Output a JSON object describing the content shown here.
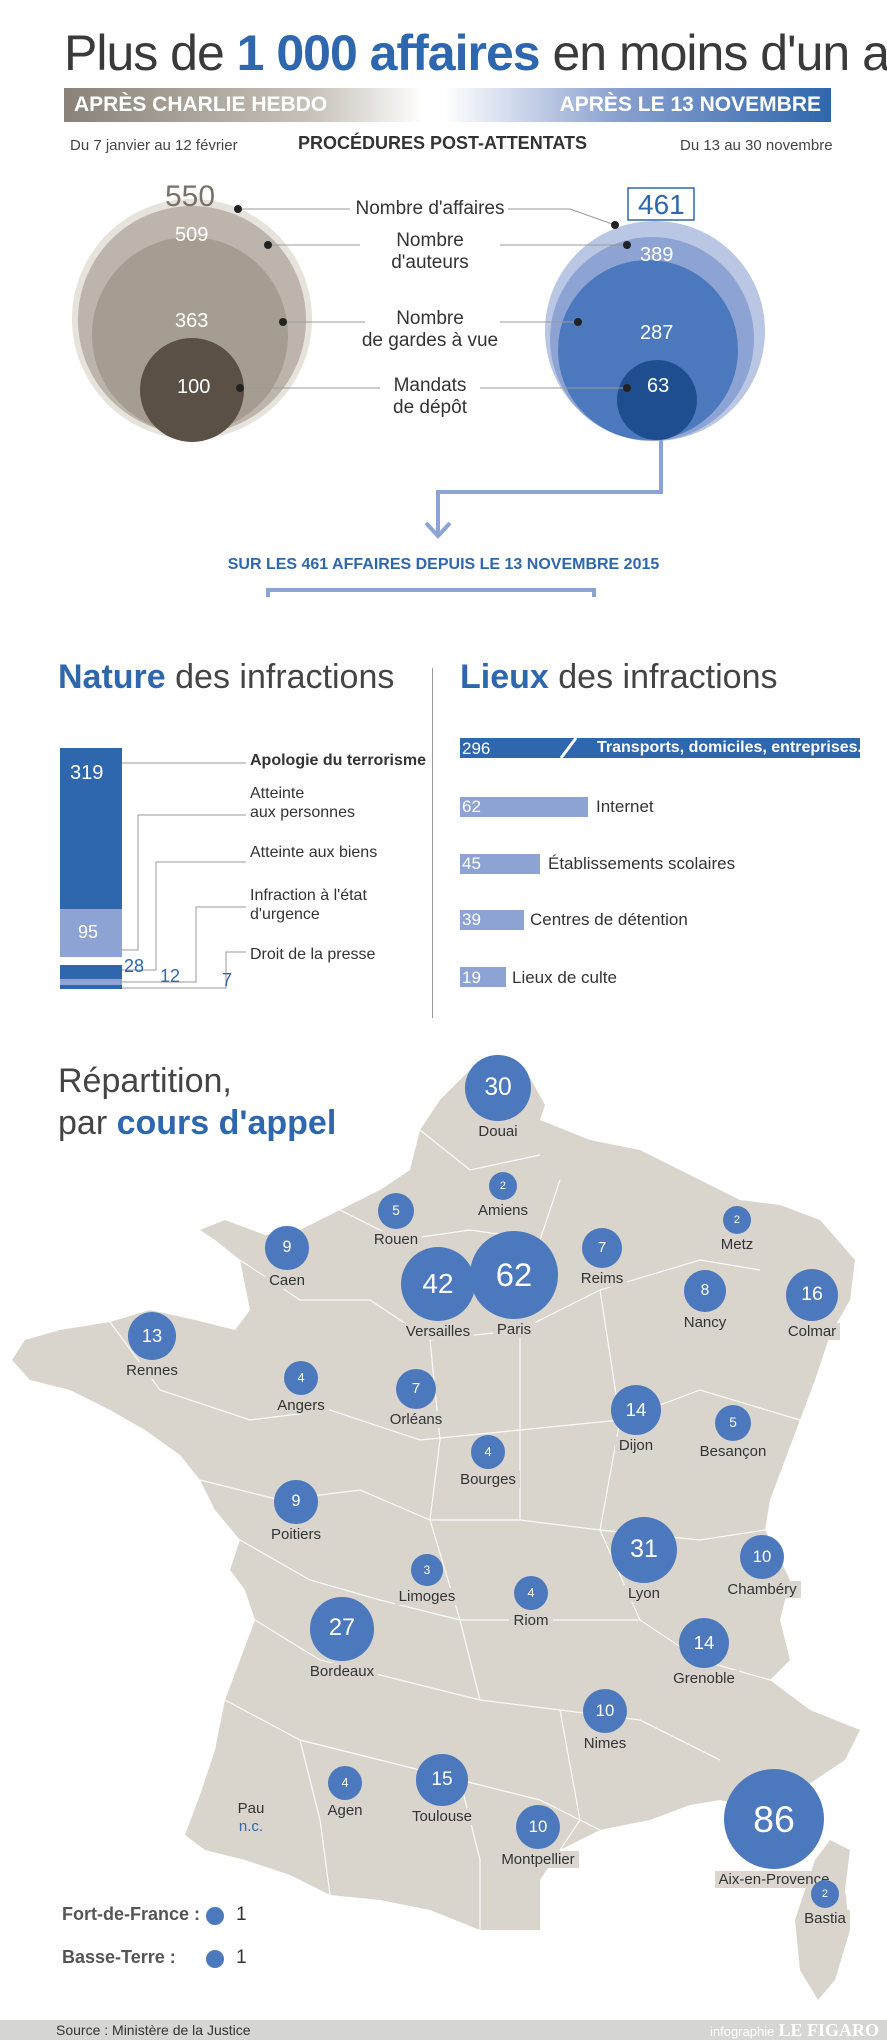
{
  "header": {
    "title_pre": "Plus de ",
    "title_bold": "1 000 affaires",
    "title_post": " en moins d'un an",
    "band_left": "APRÈS CHARLIE HEBDO",
    "band_right": "APRÈS LE 13 NOVEMBRE",
    "period_left": "Du 7 janvier au 12 février",
    "period_right": "Du 13 au 30 novembre",
    "procedures": "PROCÉDURES POST-ATTENTATS"
  },
  "chart_data": [
    {
      "type": "bubble",
      "series": [
        {
          "name": "APRÈS CHARLIE HEBDO",
          "color": "#a69d92",
          "values": [
            550,
            509,
            363,
            100
          ]
        },
        {
          "name": "APRÈS LE 13 NOVEMBRE",
          "color": "#2e67ad",
          "values": [
            461,
            389,
            287,
            63
          ]
        }
      ],
      "categories": [
        "Nombre d'affaires",
        "Nombre d'auteurs",
        "Nombre de gardes à vue",
        "Mandats de dépôt"
      ]
    },
    {
      "type": "bar",
      "title": "Nature des infractions",
      "categories": [
        "Apologie du terrorisme",
        "Atteinte aux personnes",
        "Atteinte aux biens",
        "Infraction à l'état d'urgence",
        "Droit de la presse"
      ],
      "values": [
        319,
        95,
        28,
        12,
        7
      ]
    },
    {
      "type": "bar",
      "title": "Lieux des infractions",
      "categories": [
        "Transports, domiciles, entreprises...",
        "Internet",
        "Établissements scolaires",
        "Centres de détention",
        "Lieux de culte"
      ],
      "values": [
        296,
        62,
        45,
        39,
        19
      ]
    },
    {
      "type": "map",
      "title": "Répartition, par cours d'appel",
      "categories": [
        "Douai",
        "Amiens",
        "Rouen",
        "Caen",
        "Versailles",
        "Paris",
        "Reims",
        "Metz",
        "Nancy",
        "Colmar",
        "Rennes",
        "Angers",
        "Orléans",
        "Dijon",
        "Besançon",
        "Bourges",
        "Poitiers",
        "Lyon",
        "Chambéry",
        "Limoges",
        "Riom",
        "Bordeaux",
        "Grenoble",
        "Nîmes",
        "Agen",
        "Toulouse",
        "Pau",
        "Montpellier",
        "Aix-en-Provence",
        "Bastia"
      ],
      "values": [
        30,
        2,
        5,
        9,
        42,
        62,
        7,
        2,
        8,
        16,
        13,
        4,
        7,
        14,
        5,
        4,
        9,
        31,
        10,
        3,
        4,
        27,
        14,
        10,
        4,
        15,
        null,
        10,
        86,
        2
      ]
    }
  ],
  "bubbles": {
    "labels": [
      {
        "line1": "Nombre d'affaires",
        "line2": ""
      },
      {
        "line1": "Nombre",
        "line2": "d'auteurs"
      },
      {
        "line1": "Nombre",
        "line2": "de gardes à vue"
      },
      {
        "line1": "Mandats",
        "line2": "de dépôt"
      }
    ],
    "left_values": [
      "550",
      "509",
      "363",
      "100"
    ],
    "right_values": [
      "461",
      "389",
      "287",
      "63"
    ]
  },
  "since": "SUR LES 461 AFFAIRES DEPUIS LE 13 NOVEMBRE 2015",
  "nature": {
    "title_bold": "Nature",
    "title_rest": " des infractions",
    "labels": [
      "Apologie du terrorisme",
      "Atteinte\naux personnes",
      "Atteinte aux biens",
      "Infraction à l'état\nd'urgence",
      "Droit de la presse"
    ],
    "values": [
      "319",
      "95",
      "28",
      "12",
      "7"
    ]
  },
  "lieux": {
    "title_bold": "Lieux",
    "title_rest": " des infractions",
    "labels": [
      "Transports, domiciles, entreprises...",
      "Internet",
      "Établissements scolaires",
      "Centres de détention",
      "Lieux de culte"
    ],
    "values": [
      "296",
      "62",
      "45",
      "39",
      "19"
    ]
  },
  "map": {
    "title_line1": "Répartition,",
    "title_pre": "par ",
    "title_bold": "cours d'appel",
    "courts": [
      {
        "name": "Douai",
        "value": "30"
      },
      {
        "name": "Amiens",
        "value": "2"
      },
      {
        "name": "Rouen",
        "value": "5"
      },
      {
        "name": "Caen",
        "value": "9"
      },
      {
        "name": "Versailles",
        "value": "42"
      },
      {
        "name": "Paris",
        "value": "62"
      },
      {
        "name": "Reims",
        "value": "7"
      },
      {
        "name": "Metz",
        "value": "2"
      },
      {
        "name": "Nancy",
        "value": "8"
      },
      {
        "name": "Colmar",
        "value": "16"
      },
      {
        "name": "Rennes",
        "value": "13"
      },
      {
        "name": "Angers",
        "value": "4"
      },
      {
        "name": "Orléans",
        "value": "7"
      },
      {
        "name": "Dijon",
        "value": "14"
      },
      {
        "name": "Besançon",
        "value": "5"
      },
      {
        "name": "Bourges",
        "value": "4"
      },
      {
        "name": "Poitiers",
        "value": "9"
      },
      {
        "name": "Lyon",
        "value": "31"
      },
      {
        "name": "Chambéry",
        "value": "10"
      },
      {
        "name": "Limoges",
        "value": "3"
      },
      {
        "name": "Riom",
        "value": "4"
      },
      {
        "name": "Bordeaux",
        "value": "27"
      },
      {
        "name": "Grenoble",
        "value": "14"
      },
      {
        "name": "Nimes",
        "value": "10"
      },
      {
        "name": "Agen",
        "value": "4"
      },
      {
        "name": "Toulouse",
        "value": "15"
      },
      {
        "name": "Pau",
        "value": "n.c."
      },
      {
        "name": "Montpellier",
        "value": "10"
      },
      {
        "name": "Aix-en-Provence",
        "value": "86"
      },
      {
        "name": "Bastia",
        "value": "2"
      }
    ],
    "overseas": [
      {
        "name": "Fort-de-France :",
        "value": "1"
      },
      {
        "name": "Basse-Terre :",
        "value": "1"
      }
    ]
  },
  "footer": {
    "source": "Source : Ministère de la Justice",
    "infographie": "infographie",
    "brand": "LE FIGARO"
  },
  "colors": {
    "blue": "#2e67ad",
    "light_blue": "#8da3d3",
    "taupe": "#a69d92",
    "map_fill": "#d9d5cd"
  }
}
